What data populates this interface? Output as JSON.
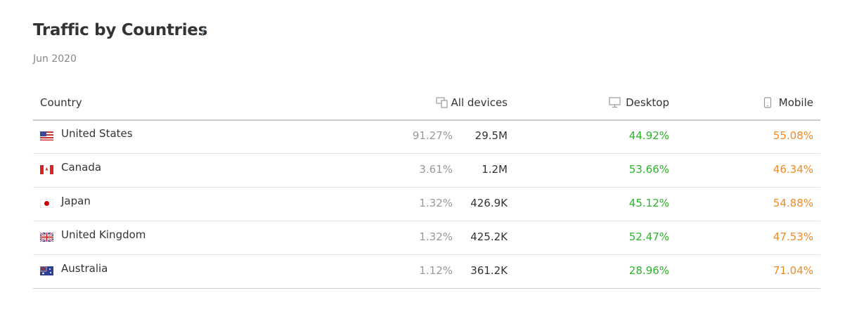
{
  "header": {
    "title": "Traffic by Countries",
    "info_icon": "i",
    "subtitle": "Jun 2020"
  },
  "table": {
    "columns": [
      "Country",
      "All devices",
      "Desktop",
      "Mobile"
    ],
    "rows": [
      [
        "United States",
        "91.27%",
        "29.5M",
        "44.92%",
        "55.08%"
      ],
      [
        "Canada",
        "3.61%",
        "1.2M",
        "53.66%",
        "46.34%"
      ],
      [
        "Japan",
        "1.32%",
        "426.9K",
        "45.12%",
        "54.88%"
      ],
      [
        "United Kingdom",
        "1.32%",
        "425.2K",
        "52.47%",
        "47.53%"
      ],
      [
        "Australia",
        "1.12%",
        "361.2K",
        "28.96%",
        "71.04%"
      ]
    ]
  }
}
